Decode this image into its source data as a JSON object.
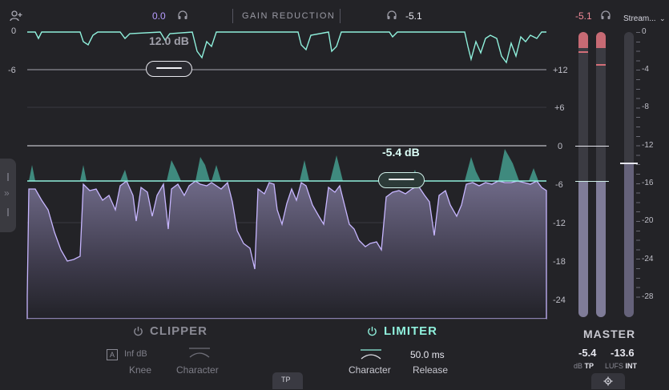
{
  "topbar": {
    "add_user_icon": "user-plus-icon",
    "input_gain": "0.0",
    "headphones_icon": "headphones-icon",
    "title": "GAIN REDUCTION",
    "output_gain": "-5.1",
    "peak_value": "-5.1",
    "preset_select": "Stream...",
    "colors": {
      "input_gain": "#b79cff",
      "peak_value": "#f08a98",
      "accent": "#8fe8d8"
    }
  },
  "graph": {
    "left_scale": [
      "0",
      "-6"
    ],
    "right_scale": [
      "+12",
      "+6",
      "0",
      "-6",
      "-12",
      "-18",
      "-24"
    ],
    "clipper_threshold": "12.0 dB",
    "limiter_threshold": "-5.4 dB",
    "colors": {
      "gr_line": "#8ff0dc",
      "waveform": "#c7b6ff",
      "threshold_line": "#8ff0dc"
    }
  },
  "clipper": {
    "title": "CLIPPER",
    "power_icon": "power-icon",
    "auto_badge": "A",
    "knee_value": "Inf dB",
    "knee_label": "Knee",
    "character_icon": "arc-icon",
    "character_label": "Character"
  },
  "limiter": {
    "title": "LIMITER",
    "power_icon": "power-icon",
    "character_icon": "arc-icon",
    "character_label": "Character",
    "release_value": "50.0 ms",
    "release_label": "Release"
  },
  "tp_button": "TP",
  "master": {
    "scale": [
      "0",
      "-4",
      "-8",
      "-12",
      "-16",
      "-20",
      "-24",
      "-28"
    ],
    "title": "MASTER",
    "tp_value": "-5.4",
    "lufs_value": "-13.6",
    "tp_unit": "dB",
    "tp_label": "TP",
    "lufs_unit": "LUFS",
    "lufs_label": "INT",
    "settings_icon": "gear-icon",
    "left_level_fraction": 0.8,
    "right_level_fraction": 0.77,
    "lufs_level_fraction": 0.45
  }
}
